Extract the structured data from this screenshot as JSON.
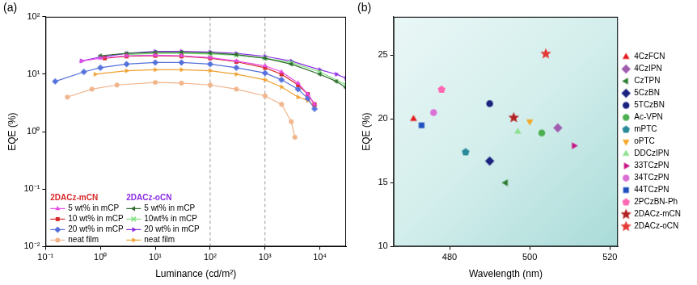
{
  "chart_data": [
    {
      "type": "line",
      "title": "(a)",
      "x_label": "Luminance (cd/m²)",
      "y_label": "EQE (%)",
      "log": true,
      "grid": false,
      "xlim": [
        0.1,
        30000
      ],
      "xticks": [
        {
          "value": 0.1,
          "label": "10⁻¹"
        },
        {
          "value": 1,
          "label": "10⁰"
        },
        {
          "value": 10,
          "label": "10¹"
        },
        {
          "value": 100,
          "label": "10²"
        },
        {
          "value": 1000,
          "label": "10³"
        },
        {
          "value": 10000,
          "label": "10⁴"
        }
      ],
      "ylim": [
        0.01,
        100
      ],
      "yticks": [
        {
          "value": 0.01,
          "label": "10⁻²"
        },
        {
          "value": 0.1,
          "label": "10⁻¹"
        },
        {
          "value": 1,
          "label": "10⁰"
        },
        {
          "value": 10,
          "label": "10¹"
        },
        {
          "value": 100,
          "label": "10²"
        }
      ],
      "vlines": [
        100,
        1000
      ],
      "groups": [
        {
          "name": "2DACz-mCN",
          "color": "#d62728"
        },
        {
          "name": "2DACz-oCN",
          "color": "#8a2be2"
        }
      ],
      "series": [
        {
          "name": "5 wt% in mCP",
          "group": "2DACz-mCN",
          "color": "#e64ce6",
          "marker": "triangle",
          "x": [
            0.45,
            1,
            3,
            10,
            30,
            100,
            300,
            1000,
            2000,
            4000,
            6000,
            8000
          ],
          "values": [
            17,
            19,
            21,
            21.5,
            21,
            19.5,
            17,
            14,
            11,
            7,
            4.5,
            3
          ]
        },
        {
          "name": "10 wt% in mCP",
          "group": "2DACz-mCN",
          "color": "#d62728",
          "marker": "square",
          "x": [
            1.2,
            3,
            10,
            30,
            100,
            300,
            1000,
            2000,
            4000,
            6000,
            8000
          ],
          "values": [
            19,
            20.5,
            21,
            20.5,
            19,
            16.5,
            13,
            10,
            6.5,
            4.5,
            3
          ]
        },
        {
          "name": "20 wt% in mCP",
          "group": "2DACz-mCN",
          "color": "#5470dc",
          "marker": "diamond",
          "x": [
            0.15,
            0.5,
            1,
            3,
            10,
            30,
            100,
            300,
            1000,
            2000,
            4000,
            6000,
            8000
          ],
          "values": [
            7.5,
            11,
            13,
            15,
            16,
            16,
            15,
            13,
            10.5,
            8,
            5.5,
            3.8,
            2.5
          ]
        },
        {
          "name": "neat film",
          "group": "2DACz-mCN",
          "color": "#f0b48a",
          "marker": "circle",
          "x": [
            0.25,
            0.7,
            2,
            10,
            30,
            100,
            300,
            1000,
            2000,
            3000,
            3500
          ],
          "values": [
            4,
            5.5,
            6.5,
            7.2,
            7,
            6.5,
            5.5,
            4.2,
            3,
            1.5,
            0.8
          ]
        },
        {
          "name": "5 wt% in mCP",
          "group": "2DACz-oCN",
          "color": "#2e6b2e",
          "marker": "triangle-left",
          "x": [
            1,
            3,
            10,
            30,
            100,
            300,
            1000,
            3000,
            10000,
            20000,
            30000
          ],
          "values": [
            21,
            23,
            24,
            24,
            23.5,
            22,
            19,
            15,
            10,
            7.5,
            5.8
          ]
        },
        {
          "name": "10wt% in mCP",
          "group": "2DACz-oCN",
          "color": "#7ee07e",
          "marker": "cross",
          "x": [
            3,
            10,
            30,
            100,
            300,
            1000,
            3000,
            10000,
            30000
          ],
          "values": [
            22,
            23,
            23,
            22.5,
            21.5,
            19,
            16,
            11,
            6.5
          ]
        },
        {
          "name": "20 wt% in mCP",
          "group": "2DACz-oCN",
          "color": "#8a2be2",
          "marker": "triangle-right",
          "x": [
            0.45,
            1,
            3,
            10,
            30,
            100,
            300,
            1000,
            3000,
            10000,
            20000,
            30000
          ],
          "values": [
            17,
            20,
            23,
            25,
            25,
            24.5,
            23,
            20.5,
            17,
            12,
            10,
            8.5
          ]
        },
        {
          "name": "neat film",
          "group": "2DACz-oCN",
          "color": "#f0a030",
          "marker": "triangle-right",
          "x": [
            0.8,
            3,
            10,
            30,
            100,
            300,
            1000,
            2000,
            4000,
            6000,
            8000
          ],
          "values": [
            10,
            11.5,
            12,
            12,
            11.5,
            10,
            8,
            6,
            4,
            3.5,
            2.8
          ]
        }
      ]
    },
    {
      "type": "scatter",
      "title": "(b)",
      "x_label": "Wavelength (nm)",
      "y_label": "EQE (%)",
      "grid": false,
      "legend": "right",
      "xlim": [
        466,
        522
      ],
      "xticks": [
        480,
        500,
        520
      ],
      "ylim": [
        10,
        28
      ],
      "yticks": [
        10,
        15,
        20,
        25
      ],
      "series": [
        {
          "name": "4CzFCN",
          "color": "#e41a1c",
          "marker": "triangle",
          "x": [
            471
          ],
          "values": [
            20
          ]
        },
        {
          "name": "4CzIPN",
          "color": "#a05cb0",
          "marker": "diamond",
          "x": [
            507
          ],
          "values": [
            19.3
          ]
        },
        {
          "name": "CzTPN",
          "color": "#2e7d32",
          "marker": "triangle-left",
          "x": [
            494
          ],
          "values": [
            15
          ]
        },
        {
          "name": "5CzBN",
          "color": "#1a237e",
          "marker": "diamond",
          "x": [
            490
          ],
          "values": [
            16.7
          ]
        },
        {
          "name": "5TCzBN",
          "color": "#1a237e",
          "marker": "circle",
          "x": [
            490
          ],
          "values": [
            21.2
          ]
        },
        {
          "name": "Ac-VPN",
          "color": "#4caf50",
          "marker": "circle",
          "x": [
            503
          ],
          "values": [
            18.9
          ]
        },
        {
          "name": "mPTC",
          "color": "#2a8a9a",
          "marker": "pentagon",
          "x": [
            484
          ],
          "values": [
            17.4
          ]
        },
        {
          "name": "oPTC",
          "color": "#f5a623",
          "marker": "triangle-down",
          "x": [
            500
          ],
          "values": [
            19.8
          ]
        },
        {
          "name": "DDCzIPN",
          "color": "#90e090",
          "marker": "triangle",
          "x": [
            497
          ],
          "values": [
            19
          ]
        },
        {
          "name": "33TCzPN",
          "color": "#c71585",
          "marker": "triangle-right",
          "x": [
            511
          ],
          "values": [
            17.9
          ]
        },
        {
          "name": "34TCzPN",
          "color": "#da70d6",
          "marker": "circle",
          "x": [
            476
          ],
          "values": [
            20.5
          ]
        },
        {
          "name": "44TCzPN",
          "color": "#1f4fbf",
          "marker": "square",
          "x": [
            473
          ],
          "values": [
            19.5
          ]
        },
        {
          "name": "2PCzBN-Ph",
          "color": "#ff69b4",
          "marker": "pentagon",
          "x": [
            478
          ],
          "values": [
            22.3
          ]
        },
        {
          "name": "2DACz-mCN",
          "color": "#b22222",
          "marker": "star",
          "x": [
            496
          ],
          "values": [
            20.1
          ]
        },
        {
          "name": "2DACz-oCN",
          "color": "#e53935",
          "marker": "star",
          "x": [
            504
          ],
          "values": [
            25.1
          ]
        }
      ]
    }
  ]
}
